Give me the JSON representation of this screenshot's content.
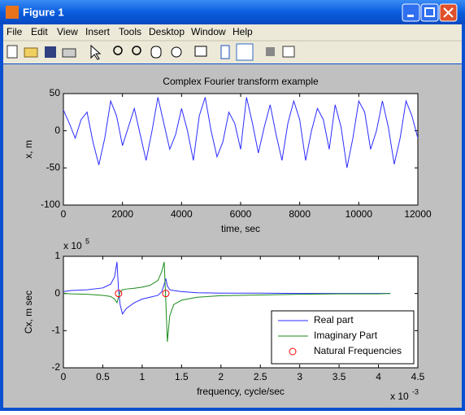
{
  "window": {
    "title": "Figure 1",
    "menu": [
      "File",
      "Edit",
      "View",
      "Insert",
      "Tools",
      "Desktop",
      "Window",
      "Help"
    ]
  },
  "chart_data": [
    {
      "type": "line",
      "title": "Complex Fourier transform example",
      "xlabel": "time, sec",
      "ylabel": "x, m",
      "xlim": [
        0,
        12000
      ],
      "xticks": [
        0,
        2000,
        4000,
        6000,
        8000,
        10000,
        12000
      ],
      "ylim": [
        -100,
        50
      ],
      "yticks": [
        -100,
        -50,
        0,
        50
      ],
      "series": [
        {
          "color": "#2b2bff",
          "x": [
            0,
            200,
            400,
            600,
            800,
            1000,
            1200,
            1400,
            1600,
            1800,
            2000,
            2200,
            2400,
            2600,
            2800,
            3000,
            3200,
            3400,
            3600,
            3800,
            4000,
            4200,
            4400,
            4600,
            4800,
            5000,
            5200,
            5400,
            5600,
            5800,
            6000,
            6200,
            6400,
            6600,
            6800,
            7000,
            7200,
            7400,
            7600,
            7800,
            8000,
            8200,
            8400,
            8600,
            8800,
            9000,
            9200,
            9400,
            9600,
            9800,
            10000,
            10200,
            10400,
            10600,
            10800,
            11000,
            11200,
            11400,
            11600,
            11800,
            12000
          ],
          "values": [
            28,
            10,
            -10,
            15,
            25,
            -15,
            -46,
            -10,
            40,
            20,
            -20,
            5,
            30,
            -5,
            -40,
            0,
            45,
            10,
            -25,
            -5,
            30,
            0,
            -40,
            20,
            45,
            0,
            -35,
            -15,
            25,
            10,
            -25,
            45,
            10,
            -30,
            5,
            35,
            -5,
            -40,
            10,
            40,
            15,
            -40,
            0,
            30,
            15,
            -25,
            35,
            5,
            -50,
            -10,
            40,
            25,
            -25,
            0,
            40,
            5,
            -45,
            -10,
            40,
            20,
            -10
          ]
        }
      ]
    },
    {
      "type": "line",
      "xlabel": "frequency, cycle/sec",
      "ylabel": "Cx, m sec",
      "x_multiplier": {
        "base": "x 10",
        "exponent": "-3"
      },
      "y_multiplier": {
        "base": "x 10",
        "exponent": "5"
      },
      "xlim": [
        0,
        4.5
      ],
      "xticks": [
        0,
        0.5,
        1,
        1.5,
        2,
        2.5,
        3,
        3.5,
        4,
        4.5
      ],
      "ylim": [
        -2,
        1
      ],
      "yticks": [
        -2,
        -1,
        0,
        1
      ],
      "legend": "southeast",
      "series": [
        {
          "name": "Real part",
          "color": "#2b2bff",
          "x": [
            0,
            0.1,
            0.3,
            0.5,
            0.6,
            0.65,
            0.68,
            0.7,
            0.72,
            0.75,
            0.8,
            0.9,
            1.0,
            1.1,
            1.2,
            1.25,
            1.28,
            1.3,
            1.32,
            1.35,
            1.4,
            1.5,
            1.7,
            2.0,
            2.5,
            3.0,
            3.5,
            4.0,
            4.15
          ],
          "values": [
            0.05,
            0.08,
            0.1,
            0.15,
            0.25,
            0.45,
            0.85,
            0.1,
            -0.3,
            -0.55,
            -0.4,
            -0.25,
            -0.15,
            -0.1,
            -0.05,
            0.05,
            0.25,
            0.4,
            0.2,
            0.1,
            0.08,
            0.05,
            0.02,
            0.01,
            0.01,
            0,
            0,
            0,
            0
          ]
        },
        {
          "name": "Imaginary Part",
          "color": "#1a8a1a",
          "x": [
            0,
            0.1,
            0.3,
            0.5,
            0.6,
            0.65,
            0.68,
            0.7,
            0.72,
            0.75,
            0.8,
            0.9,
            1.0,
            1.1,
            1.2,
            1.25,
            1.28,
            1.3,
            1.32,
            1.35,
            1.4,
            1.5,
            1.7,
            2.0,
            2.5,
            3.0,
            3.5,
            4.0,
            4.15
          ],
          "values": [
            0,
            -0.01,
            -0.02,
            -0.05,
            -0.08,
            -0.15,
            -0.25,
            -0.1,
            0.05,
            0.1,
            0.12,
            0.14,
            0.17,
            0.22,
            0.35,
            0.6,
            0.85,
            -0.2,
            -1.3,
            -0.6,
            -0.3,
            -0.18,
            -0.1,
            -0.06,
            -0.04,
            -0.02,
            -0.01,
            -0.01,
            0
          ]
        },
        {
          "name": "Natural Frequencies",
          "color": "#ff0000",
          "marker": "o",
          "linestyle": "none",
          "x": [
            0.7,
            1.3
          ],
          "values": [
            0,
            0
          ]
        }
      ]
    }
  ]
}
